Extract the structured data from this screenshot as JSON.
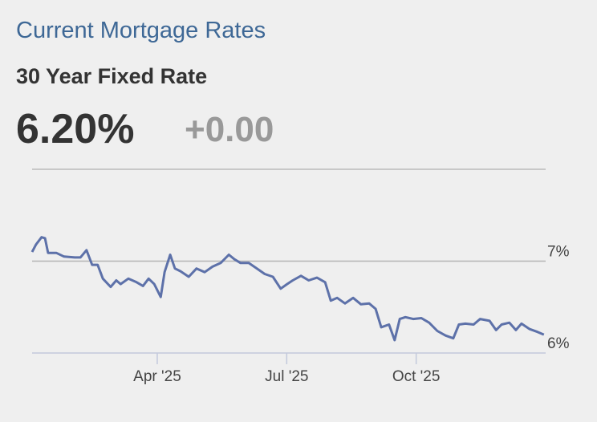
{
  "header": {
    "title": "Current Mortgage Rates",
    "subtitle": "30 Year Fixed Rate",
    "rate": "6.20%",
    "change": "+0.00"
  },
  "chart_data": {
    "type": "line",
    "color": "#5d71a9",
    "x": [
      0.1,
      0.19,
      0.32,
      0.4,
      0.47,
      0.66,
      0.84,
      1.09,
      1.22,
      1.36,
      1.49,
      1.62,
      1.74,
      1.92,
      2.05,
      2.15,
      2.33,
      2.52,
      2.67,
      2.8,
      2.93,
      3.08,
      3.17,
      3.3,
      3.41,
      3.54,
      3.73,
      3.91,
      4.1,
      4.28,
      4.47,
      4.66,
      4.79,
      4.93,
      5.12,
      5.31,
      5.49,
      5.68,
      5.86,
      6.01,
      6.14,
      6.33,
      6.51,
      6.7,
      6.89,
      7.02,
      7.17,
      7.35,
      7.54,
      7.72,
      7.91,
      8.06,
      8.19,
      8.37,
      8.5,
      8.62,
      8.75,
      8.93,
      9.12,
      9.3,
      9.49,
      9.68,
      9.86,
      9.99,
      10.14,
      10.33,
      10.48,
      10.7,
      10.85,
      10.98,
      11.16,
      11.31,
      11.44,
      11.63,
      11.81,
      11.96
    ],
    "values": [
      7.1,
      7.18,
      7.26,
      7.25,
      7.09,
      7.09,
      7.05,
      7.04,
      7.04,
      7.12,
      6.96,
      6.96,
      6.81,
      6.72,
      6.79,
      6.75,
      6.81,
      6.77,
      6.73,
      6.81,
      6.75,
      6.61,
      6.88,
      7.07,
      6.92,
      6.89,
      6.83,
      6.92,
      6.88,
      6.94,
      6.98,
      7.07,
      7.02,
      6.98,
      6.98,
      6.92,
      6.86,
      6.83,
      6.7,
      6.75,
      6.79,
      6.84,
      6.79,
      6.82,
      6.77,
      6.57,
      6.6,
      6.54,
      6.6,
      6.53,
      6.54,
      6.48,
      6.28,
      6.31,
      6.14,
      6.37,
      6.39,
      6.37,
      6.38,
      6.33,
      6.24,
      6.19,
      6.16,
      6.31,
      6.32,
      6.31,
      6.37,
      6.35,
      6.25,
      6.31,
      6.33,
      6.25,
      6.32,
      6.26,
      6.23,
      6.2
    ],
    "xlim": [
      0.1,
      12
    ],
    "xticks": [
      {
        "value": 3,
        "label": "Apr '25"
      },
      {
        "value": 6,
        "label": "Jul '25"
      },
      {
        "value": 9,
        "label": "Oct '25"
      }
    ],
    "ylim": [
      6,
      8
    ],
    "yticks": [
      {
        "value": 6,
        "label": "6%"
      },
      {
        "value": 7,
        "label": "7%"
      }
    ],
    "grid": true
  }
}
